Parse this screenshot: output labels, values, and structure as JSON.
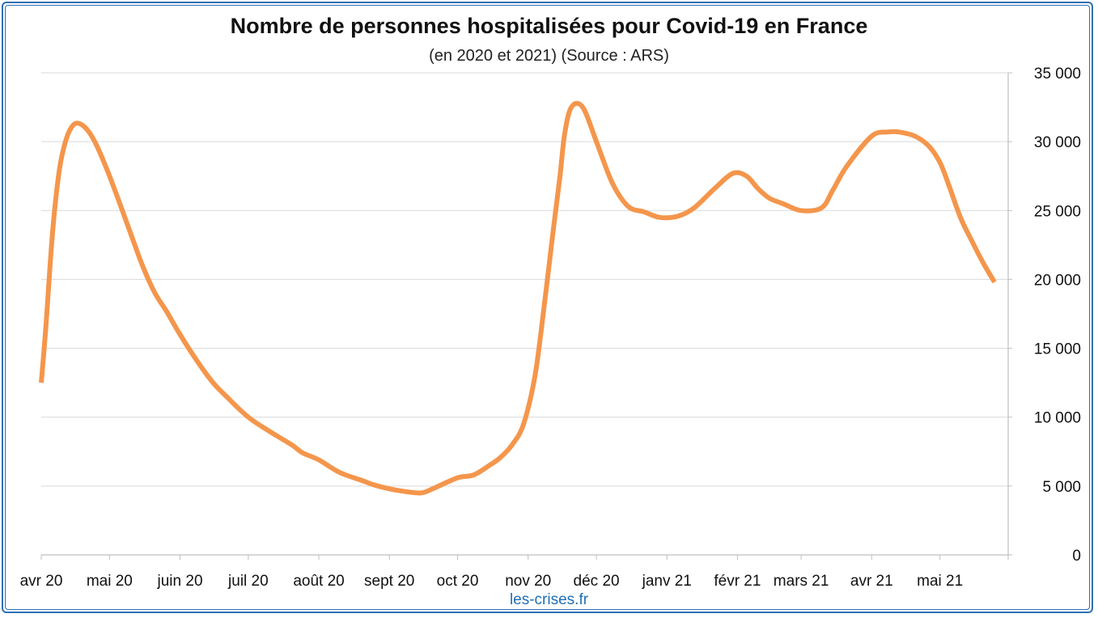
{
  "chart_data": {
    "type": "line",
    "title": "Nombre de personnes hospitalisées pour Covid-19 en France",
    "subtitle": "(en 2020 et 2021) (Source : ARS)",
    "credit": "les-crises.fr",
    "x_tick_labels": [
      "avr 20",
      "mai 20",
      "juin 20",
      "juil 20",
      "août 20",
      "sept 20",
      "oct 20",
      "nov 20",
      "déc 20",
      "janv 21",
      "févr 21",
      "mars 21",
      "avr 21",
      "mai 21"
    ],
    "y_tick_labels": [
      "0",
      "5 000",
      "10 000",
      "15 000",
      "20 000",
      "25 000",
      "30 000",
      "35 000"
    ],
    "ylim": [
      0,
      35000
    ],
    "y_axis_side": "right",
    "grid": true,
    "line_color": "#f4964c",
    "series": [
      {
        "x": [
          "2020-04-01",
          "2020-04-03",
          "2020-04-06",
          "2020-04-09",
          "2020-04-12",
          "2020-04-15",
          "2020-04-18",
          "2020-04-22",
          "2020-04-26",
          "2020-05-01",
          "2020-05-06",
          "2020-05-11",
          "2020-05-16",
          "2020-05-21",
          "2020-05-26",
          "2020-06-01",
          "2020-06-08",
          "2020-06-15",
          "2020-06-22",
          "2020-07-01",
          "2020-07-10",
          "2020-07-20",
          "2020-07-25",
          "2020-08-01",
          "2020-08-10",
          "2020-08-20",
          "2020-08-25",
          "2020-09-01",
          "2020-09-08",
          "2020-09-15",
          "2020-09-20",
          "2020-10-01",
          "2020-10-08",
          "2020-10-15",
          "2020-10-20",
          "2020-10-25",
          "2020-10-30",
          "2020-11-04",
          "2020-11-08",
          "2020-11-12",
          "2020-11-15",
          "2020-11-17",
          "2020-11-20",
          "2020-11-25",
          "2020-12-01",
          "2020-12-08",
          "2020-12-15",
          "2020-12-22",
          "2020-12-29",
          "2021-01-06",
          "2021-01-13",
          "2021-01-22",
          "2021-01-30",
          "2021-02-05",
          "2021-02-10",
          "2021-02-15",
          "2021-02-21",
          "2021-03-01",
          "2021-03-10",
          "2021-03-15",
          "2021-03-21",
          "2021-04-01",
          "2021-04-08",
          "2021-04-13",
          "2021-04-20",
          "2021-04-26",
          "2021-05-01",
          "2021-05-05",
          "2021-05-10",
          "2021-05-15",
          "2021-05-20",
          "2021-05-25"
        ],
        "values": [
          12500,
          16500,
          23500,
          28000,
          30200,
          31200,
          31300,
          30700,
          29500,
          27500,
          25300,
          23000,
          20800,
          19000,
          17700,
          16000,
          14200,
          12600,
          11400,
          10000,
          9000,
          8000,
          7400,
          6900,
          6000,
          5400,
          5100,
          4800,
          4600,
          4500,
          4800,
          5600,
          5800,
          6500,
          7100,
          8000,
          9500,
          13000,
          18000,
          23500,
          27500,
          30500,
          32500,
          32500,
          30000,
          27000,
          25300,
          24900,
          24500,
          24600,
          25200,
          26600,
          27700,
          27500,
          26600,
          25900,
          25500,
          25000,
          25200,
          26500,
          28200,
          30400,
          30700,
          30700,
          30400,
          29700,
          28500,
          26800,
          24500,
          22800,
          21200,
          19800
        ]
      }
    ]
  }
}
